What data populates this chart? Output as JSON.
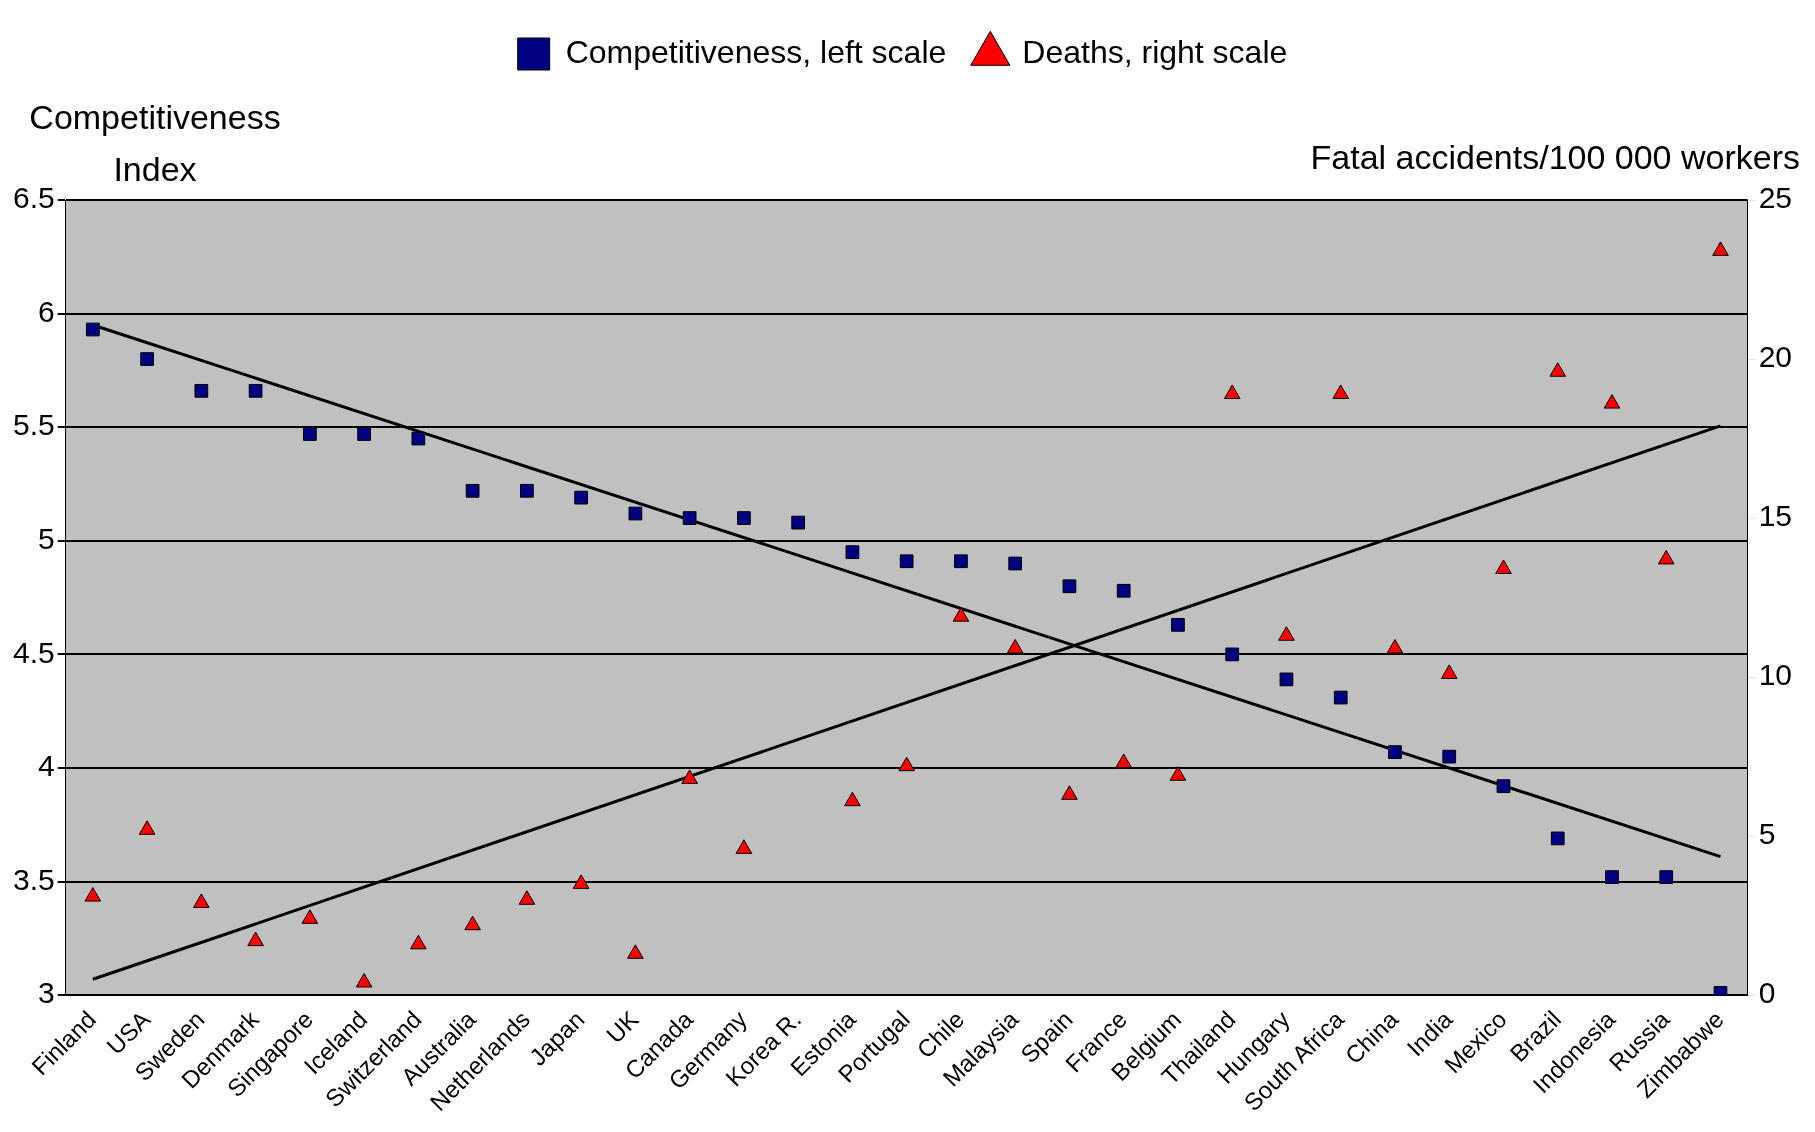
{
  "chart_data": {
    "type": "scatter",
    "ylabel": "Competitiveness\nIndex",
    "y2label": "Fatal accidents/100 000 workers",
    "categories": [
      "Finland",
      "USA",
      "Sweden",
      "Denmark",
      "Singapore",
      "Iceland",
      "Switzerland",
      "Australia",
      "Netherlands",
      "Japan",
      "UK",
      "Canada",
      "Germany",
      "Korea R.",
      "Estonia",
      "Portugal",
      "Chile",
      "Malaysia",
      "Spain",
      "France",
      "Belgium",
      "Thailand",
      "Hungary",
      "South Africa",
      "China",
      "India",
      "Mexico",
      "Brazil",
      "Indonesia",
      "Russia",
      "Zimbabwe"
    ],
    "series": [
      {
        "name": "Competitiveness, left scale",
        "type": "scatter",
        "marker": "square",
        "color": "#000080",
        "values": [
          5.93,
          5.8,
          5.66,
          5.66,
          5.47,
          5.47,
          5.45,
          5.22,
          5.22,
          5.19,
          5.12,
          5.1,
          5.1,
          5.08,
          4.95,
          4.91,
          4.91,
          4.9,
          4.8,
          4.78,
          4.63,
          4.5,
          4.39,
          4.31,
          4.07,
          4.05,
          3.92,
          3.69,
          3.52,
          3.52,
          3.01
        ]
      },
      {
        "name": "Deaths, right scale",
        "type": "scatter",
        "marker": "triangle",
        "color": "#ff0000",
        "axis": "y2",
        "values": [
          3.1,
          5.2,
          2.9,
          1.7,
          2.4,
          0.4,
          1.6,
          2.2,
          3.0,
          3.5,
          1.3,
          6.8,
          4.6,
          null,
          6.1,
          7.2,
          11.9,
          10.9,
          6.3,
          7.3,
          6.9,
          18.9,
          11.3,
          18.9,
          10.9,
          10.1,
          13.4,
          19.6,
          18.6,
          13.7,
          23.4
        ]
      },
      {
        "type": "line",
        "color": "#000000",
        "x": [
          "Finland",
          "Zimbabwe"
        ],
        "values": [
          5.95,
          3.61
        ]
      },
      {
        "type": "line",
        "color": "#000000",
        "axis": "y2",
        "x": [
          "Finland",
          "Zimbabwe"
        ],
        "values": [
          0.5,
          17.9
        ]
      }
    ],
    "ylim": [
      3,
      6.5
    ],
    "yticks": [
      3,
      3.5,
      4,
      4.5,
      5,
      5.5,
      6,
      6.5
    ],
    "y2lim": [
      0,
      25
    ],
    "y2ticks": [
      0,
      5,
      10,
      15,
      20,
      25
    ],
    "grid": "y",
    "legend": "top"
  }
}
